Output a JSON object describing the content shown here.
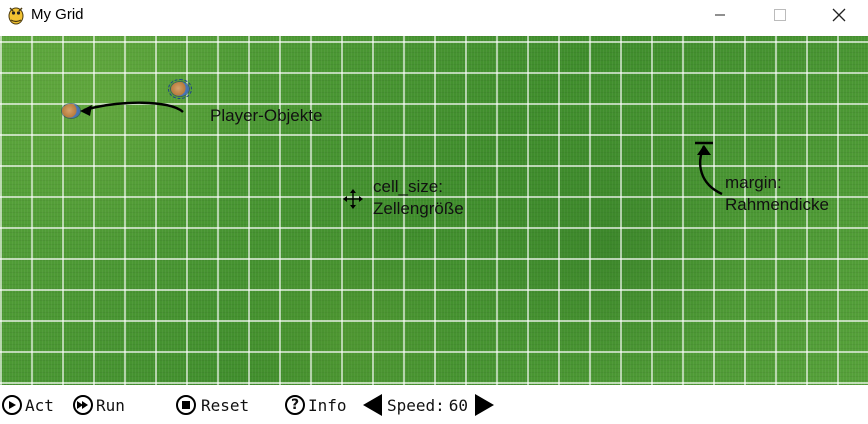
{
  "window": {
    "title": "My Grid",
    "icons": {
      "app": "pygame-snake-icon",
      "minimize": "minimize-icon",
      "maximize": "maximize-icon",
      "close": "close-icon"
    }
  },
  "grid": {
    "columns": 28,
    "rows": 11,
    "background": "grass-texture",
    "line_color": "#ffffff"
  },
  "annotations": {
    "players": "Player-Objekte",
    "cell_size_line1": "cell_size:",
    "cell_size_line2": "Zellengröße",
    "margin_line1": "margin:",
    "margin_line2": "Rahmendicke"
  },
  "toolbar": {
    "act_label": "Act",
    "run_label": "Run",
    "reset_label": "Reset",
    "info_label": "Info",
    "speed_label": "Speed:",
    "speed_value": "60",
    "icons": {
      "act": "play-circle-icon",
      "run": "fast-forward-circle-icon",
      "reset": "stop-circle-icon",
      "info": "question-circle-icon",
      "speed_down": "triangle-left-icon",
      "speed_up": "triangle-right-icon"
    }
  }
}
